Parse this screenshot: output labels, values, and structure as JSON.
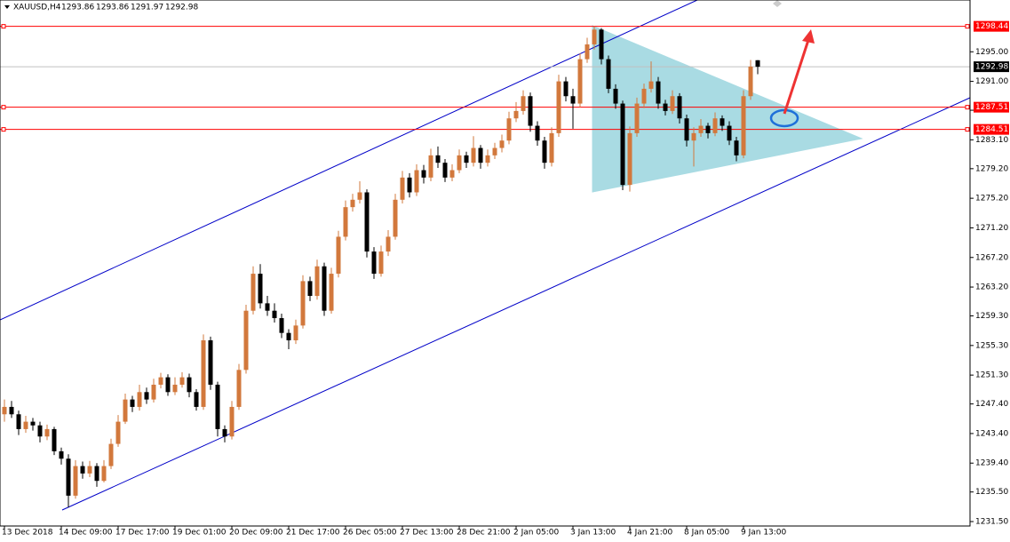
{
  "chart_data": {
    "type": "candlestick",
    "symbol": "XAUUSD,H4",
    "categories": [
      "13 Dec 2018",
      "14 Dec 09:00",
      "17 Dec 17:00",
      "19 Dec 01:00",
      "20 Dec 09:00",
      "21 Dec 17:00",
      "26 Dec 05:00",
      "27 Dec 13:00",
      "28 Dec 21:00",
      "2 Jan 05:00",
      "3 Jan 13:00",
      "4 Jan 21:00",
      "8 Jan 05:00",
      "9 Jan 13:00"
    ],
    "up_color": "#d2783c",
    "down_color": "#000000",
    "ylim": [
      1230.9,
      1302.0
    ],
    "yticks": [
      {
        "value": 1231.5,
        "label": "1231.50"
      },
      {
        "value": 1235.5,
        "label": "1235.50"
      },
      {
        "value": 1239.4,
        "label": "1239.40"
      },
      {
        "value": 1243.4,
        "label": "1243.40"
      },
      {
        "value": 1247.4,
        "label": "1247.40"
      },
      {
        "value": 1251.3,
        "label": "1251.30"
      },
      {
        "value": 1255.3,
        "label": "1255.30"
      },
      {
        "value": 1259.3,
        "label": "1259.30"
      },
      {
        "value": 1263.2,
        "label": "1263.20"
      },
      {
        "value": 1267.2,
        "label": "1267.20"
      },
      {
        "value": 1271.2,
        "label": "1271.20"
      },
      {
        "value": 1275.2,
        "label": "1275.20"
      },
      {
        "value": 1279.2,
        "label": "1279.20"
      },
      {
        "value": 1283.1,
        "label": "1283.10"
      },
      {
        "value": 1287.1,
        "label": "1287.10"
      },
      {
        "value": 1291,
        "label": "1291.00"
      },
      {
        "value": 1295,
        "label": "1295.00"
      }
    ],
    "levels": [
      1298.44,
      1287.51,
      1284.51
    ],
    "level_color": "#ff0000",
    "ohlc": [
      [
        1246,
        1248,
        1245,
        1247
      ],
      [
        1247,
        1247.8,
        1245.5,
        1246
      ],
      [
        1246,
        1246.5,
        1243.2,
        1244
      ],
      [
        1244,
        1245.8,
        1243.5,
        1245
      ],
      [
        1245,
        1245.5,
        1243.8,
        1244.5
      ],
      [
        1244.5,
        1245,
        1242.2,
        1243
      ],
      [
        1243,
        1244.6,
        1242.5,
        1244
      ],
      [
        1244,
        1244.3,
        1240.5,
        1241
      ],
      [
        1241,
        1241.5,
        1239.2,
        1240
      ],
      [
        1240,
        1240.6,
        1233.4,
        1235
      ],
      [
        1235,
        1239.8,
        1234.6,
        1239
      ],
      [
        1239,
        1239.6,
        1237.3,
        1238
      ],
      [
        1238,
        1239.7,
        1237.5,
        1239
      ],
      [
        1239,
        1239.4,
        1236.2,
        1237
      ],
      [
        1237,
        1239.8,
        1236.8,
        1239
      ],
      [
        1239,
        1242.7,
        1238.6,
        1242
      ],
      [
        1242,
        1245.9,
        1241.6,
        1245
      ],
      [
        1245,
        1248.8,
        1244.7,
        1248
      ],
      [
        1248,
        1248.5,
        1246.3,
        1247
      ],
      [
        1247,
        1250,
        1246.5,
        1249
      ],
      [
        1249,
        1249.6,
        1247.4,
        1248
      ],
      [
        1248,
        1250.8,
        1247.6,
        1250
      ],
      [
        1250,
        1251.6,
        1249.5,
        1251
      ],
      [
        1251,
        1251.4,
        1248.5,
        1249
      ],
      [
        1249,
        1251,
        1248.6,
        1250
      ],
      [
        1250,
        1251.7,
        1249.6,
        1251
      ],
      [
        1251,
        1251.5,
        1248.3,
        1249
      ],
      [
        1249,
        1249.4,
        1246.5,
        1247
      ],
      [
        1247,
        1256.8,
        1246.6,
        1256
      ],
      [
        1256,
        1256.5,
        1249.3,
        1250
      ],
      [
        1250,
        1250.4,
        1243,
        1244
      ],
      [
        1244,
        1244.5,
        1242.2,
        1243
      ],
      [
        1243,
        1247.8,
        1242.6,
        1247
      ],
      [
        1247,
        1252.8,
        1246.6,
        1252
      ],
      [
        1252,
        1260.8,
        1251.5,
        1260
      ],
      [
        1260,
        1266,
        1259.5,
        1265
      ],
      [
        1265,
        1266.3,
        1260.3,
        1261
      ],
      [
        1261,
        1262,
        1259.3,
        1260
      ],
      [
        1260,
        1261,
        1258.4,
        1259
      ],
      [
        1259,
        1259.6,
        1256.3,
        1257
      ],
      [
        1257,
        1257.5,
        1254.8,
        1256
      ],
      [
        1256,
        1258.8,
        1255.5,
        1258
      ],
      [
        1258,
        1264.8,
        1257.6,
        1264
      ],
      [
        1264,
        1264.6,
        1261.3,
        1262
      ],
      [
        1262,
        1266.9,
        1261.5,
        1266
      ],
      [
        1266,
        1266.5,
        1259.3,
        1260
      ],
      [
        1260,
        1265.8,
        1259.6,
        1265
      ],
      [
        1265,
        1270.8,
        1264.5,
        1270
      ],
      [
        1270,
        1274.9,
        1269.5,
        1274
      ],
      [
        1274,
        1275.8,
        1273.4,
        1275
      ],
      [
        1275,
        1277.5,
        1274.5,
        1276
      ],
      [
        1276,
        1276.4,
        1267.2,
        1268
      ],
      [
        1268,
        1268.6,
        1264.3,
        1265
      ],
      [
        1265,
        1268.8,
        1264.6,
        1268
      ],
      [
        1268,
        1270.9,
        1267.4,
        1270
      ],
      [
        1270,
        1275.8,
        1269.6,
        1275
      ],
      [
        1275,
        1278.9,
        1274.5,
        1278
      ],
      [
        1278,
        1278.6,
        1275.3,
        1276
      ],
      [
        1276,
        1279.8,
        1275.5,
        1279
      ],
      [
        1279,
        1279.7,
        1277.2,
        1278
      ],
      [
        1278,
        1281.9,
        1277.5,
        1281
      ],
      [
        1281,
        1282.2,
        1279.3,
        1280
      ],
      [
        1280,
        1280.5,
        1277.4,
        1278
      ],
      [
        1278,
        1279.8,
        1277.5,
        1279
      ],
      [
        1279,
        1281.8,
        1278.6,
        1281
      ],
      [
        1281,
        1281.5,
        1279.3,
        1280
      ],
      [
        1280,
        1283.6,
        1279.5,
        1282
      ],
      [
        1282,
        1282.4,
        1279.2,
        1280
      ],
      [
        1280,
        1281.8,
        1279.5,
        1281
      ],
      [
        1281,
        1282.7,
        1280.5,
        1282
      ],
      [
        1282,
        1283.8,
        1281.4,
        1283
      ],
      [
        1283,
        1286.9,
        1282.5,
        1286
      ],
      [
        1286,
        1288.2,
        1285.5,
        1287
      ],
      [
        1287,
        1289.8,
        1286.5,
        1289
      ],
      [
        1289,
        1289.5,
        1284.2,
        1285
      ],
      [
        1285,
        1285.6,
        1282.3,
        1283
      ],
      [
        1283,
        1283.5,
        1279.2,
        1280
      ],
      [
        1280,
        1284.8,
        1279.5,
        1284
      ],
      [
        1284,
        1291.9,
        1283.5,
        1291
      ],
      [
        1291,
        1291.6,
        1288.3,
        1289
      ],
      [
        1289,
        1290,
        1284.6,
        1288
      ],
      [
        1288,
        1294.8,
        1287.5,
        1294
      ],
      [
        1294,
        1296.9,
        1293.5,
        1296
      ],
      [
        1296,
        1298.44,
        1295.3,
        1298
      ],
      [
        1298,
        1298.2,
        1293.3,
        1294
      ],
      [
        1294,
        1294.5,
        1289.4,
        1290
      ],
      [
        1290,
        1290.6,
        1287.3,
        1288
      ],
      [
        1288,
        1288.4,
        1276.3,
        1277
      ],
      [
        1277,
        1284.9,
        1276.1,
        1284
      ],
      [
        1284,
        1288.8,
        1283.5,
        1288
      ],
      [
        1288,
        1290.7,
        1287.4,
        1290
      ],
      [
        1290,
        1293.7,
        1289.5,
        1291
      ],
      [
        1291,
        1291.6,
        1287.3,
        1288
      ],
      [
        1288,
        1288.5,
        1286.4,
        1287
      ],
      [
        1287,
        1289.8,
        1286.6,
        1289
      ],
      [
        1289,
        1289.4,
        1285.3,
        1286
      ],
      [
        1286,
        1286.5,
        1282.2,
        1283
      ],
      [
        1283,
        1284.8,
        1279.5,
        1284
      ],
      [
        1284,
        1285.9,
        1283.5,
        1285
      ],
      [
        1285,
        1285.4,
        1283.3,
        1284
      ],
      [
        1284,
        1286.8,
        1283.6,
        1286
      ],
      [
        1286,
        1286.4,
        1284.3,
        1285
      ],
      [
        1285,
        1285.6,
        1282.4,
        1283
      ],
      [
        1283,
        1283.5,
        1280.2,
        1281
      ],
      [
        1281,
        1289.8,
        1280.6,
        1289
      ],
      [
        1289,
        1293.9,
        1288.5,
        1293
      ],
      [
        1293.86,
        1293.86,
        1291.97,
        1292.98
      ]
    ]
  }
}
